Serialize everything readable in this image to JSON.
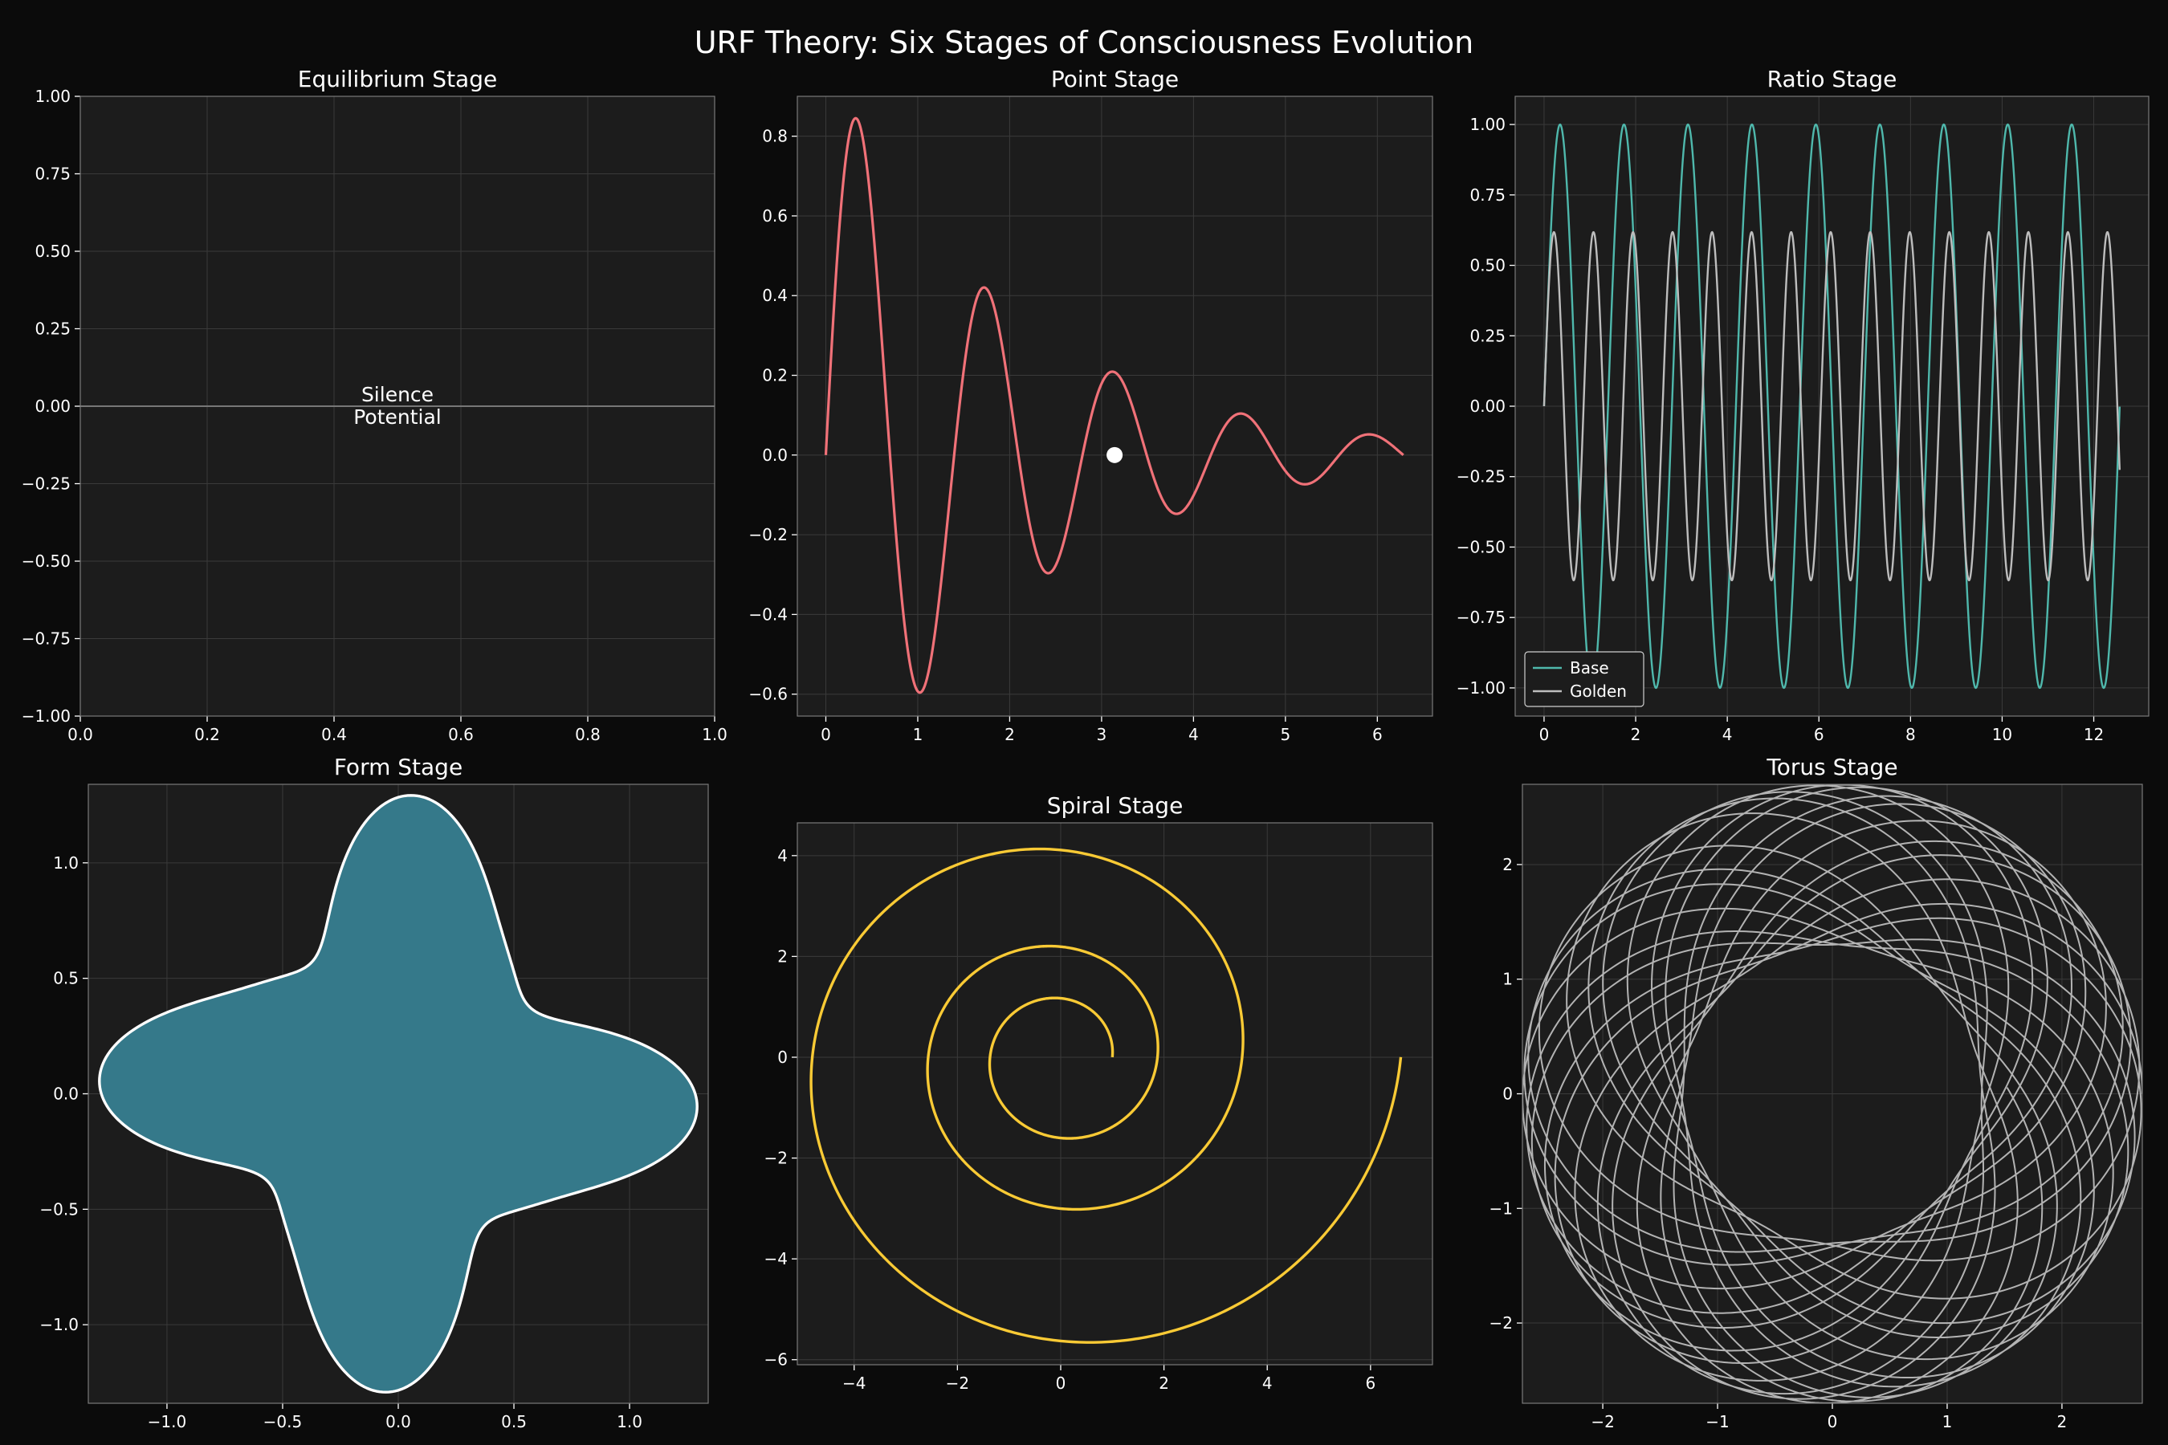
{
  "title": "URF Theory: Six Stages of Consciousness Evolution",
  "colors": {
    "background": "#0b0b0b",
    "plot_bg": "#1c1c1c",
    "point": "#f07178",
    "base": "#4fb8ac",
    "golden": "#bdbdbd",
    "form_fill": "#35798a",
    "form_edge": "#ffffff",
    "spiral": "#f9ca35",
    "torus": "#d9d9d9",
    "equilibrium_line": "#777777"
  },
  "chart_data": [
    {
      "id": "equilibrium",
      "type": "line",
      "title": "Equilibrium Stage",
      "xlim": [
        0,
        1
      ],
      "ylim": [
        -1,
        1
      ],
      "xticks": [
        0,
        0.2,
        0.4,
        0.6,
        0.8,
        1.0
      ],
      "xtick_labels": [
        "0.0",
        "0.2",
        "0.4",
        "0.6",
        "0.8",
        "1.0"
      ],
      "yticks": [
        -1,
        -0.75,
        -0.5,
        -0.25,
        0,
        0.25,
        0.5,
        0.75,
        1
      ],
      "ytick_labels": [
        "−1.00",
        "−0.75",
        "−0.50",
        "−0.25",
        "0.00",
        "0.25",
        "0.50",
        "0.75",
        "1.00"
      ],
      "series": [
        {
          "name": "silence",
          "function": "y = 0",
          "x_range": [
            0,
            1
          ]
        }
      ],
      "annotation": {
        "text_lines": [
          "Silence",
          "Potential"
        ],
        "x": 0.5,
        "y": 0
      }
    },
    {
      "id": "point",
      "type": "line",
      "title": "Point Stage",
      "xlim": [
        -0.31,
        6.6
      ],
      "ylim": [
        -0.655,
        0.9
      ],
      "xticks": [
        0,
        1,
        2,
        3,
        4,
        5,
        6
      ],
      "xtick_labels": [
        "0",
        "1",
        "2",
        "3",
        "4",
        "5",
        "6"
      ],
      "yticks": [
        -0.6,
        -0.4,
        -0.2,
        0,
        0.2,
        0.4,
        0.6,
        0.8
      ],
      "ytick_labels": [
        "−0.6",
        "−0.4",
        "−0.2",
        "0.0",
        "0.2",
        "0.4",
        "0.6",
        "0.8"
      ],
      "series": [
        {
          "name": "damped wave",
          "function": "y = exp(-0.5 x) sin(4.5 x)",
          "x_range": [
            0,
            6.283
          ]
        }
      ],
      "point": {
        "x": 3.1416,
        "y": 0
      }
    },
    {
      "id": "ratio",
      "type": "line",
      "title": "Ratio Stage",
      "xlim": [
        -0.63,
        13.2
      ],
      "ylim": [
        -1.1,
        1.1
      ],
      "xticks": [
        0,
        2,
        4,
        6,
        8,
        10,
        12
      ],
      "xtick_labels": [
        "0",
        "2",
        "4",
        "6",
        "8",
        "10",
        "12"
      ],
      "yticks": [
        -1,
        -0.75,
        -0.5,
        -0.25,
        0,
        0.25,
        0.5,
        0.75,
        1
      ],
      "ytick_labels": [
        "−1.00",
        "−0.75",
        "−0.50",
        "−0.25",
        "0.00",
        "0.25",
        "0.50",
        "0.75",
        "1.00"
      ],
      "series": [
        {
          "name": "Base",
          "function": "y = sin(4.5 x)",
          "x_range": [
            0,
            12.566
          ]
        },
        {
          "name": "Golden",
          "function": "y = 0.618 sin(7.28 x)",
          "x_range": [
            0,
            12.566
          ]
        }
      ],
      "legend": {
        "location": "lower-left",
        "entries": [
          "Base",
          "Golden"
        ]
      }
    },
    {
      "id": "form",
      "type": "area",
      "title": "Form Stage",
      "xlim": [
        -1.34,
        1.34
      ],
      "ylim": [
        -1.34,
        1.34
      ],
      "xticks": [
        -1,
        -0.5,
        0,
        0.5,
        1
      ],
      "xtick_labels": [
        "−1.0",
        "−0.5",
        "0.0",
        "0.5",
        "1.0"
      ],
      "yticks": [
        -1,
        -0.5,
        0,
        0.5,
        1
      ],
      "ytick_labels": [
        "−1.0",
        "−0.5",
        "0.0",
        "0.5",
        "1.0"
      ],
      "series": [
        {
          "name": "four-lobed form",
          "function": "r = 0.95 + 0.3 cos(4 t + 0.33) + 0.05 cos(8 t)",
          "t_range": [
            0,
            6.283
          ]
        }
      ]
    },
    {
      "id": "spiral",
      "type": "line",
      "title": "Spiral Stage",
      "xlim": [
        -5.1,
        7.2
      ],
      "ylim": [
        -6.1,
        4.65
      ],
      "xticks": [
        -4,
        -2,
        0,
        2,
        4,
        6
      ],
      "xtick_labels": [
        "−4",
        "−2",
        "0",
        "2",
        "4",
        "6"
      ],
      "yticks": [
        -6,
        -4,
        -2,
        0,
        2,
        4
      ],
      "ytick_labels": [
        "−6",
        "−4",
        "−2",
        "0",
        "2",
        "4"
      ],
      "series": [
        {
          "name": "golden spiral",
          "function": "r = exp(0.1 t)",
          "t_range": [
            0,
            18.85
          ]
        }
      ]
    },
    {
      "id": "torus",
      "type": "line",
      "title": "Torus Stage",
      "xlim": [
        -2.7,
        2.7
      ],
      "ylim": [
        -2.7,
        2.7
      ],
      "xticks": [
        -2,
        -1,
        0,
        1,
        2
      ],
      "xtick_labels": [
        "−2",
        "−1",
        "0",
        "1",
        "2"
      ],
      "yticks": [
        -2,
        -1,
        0,
        1,
        2
      ],
      "ytick_labels": [
        "−2",
        "−1",
        "0",
        "1",
        "2"
      ],
      "series": [
        {
          "name": "torus winding",
          "function": "r = 2 + 0.7 cos(1.618 t)",
          "t_range": [
            0,
            125.7
          ]
        }
      ]
    }
  ]
}
